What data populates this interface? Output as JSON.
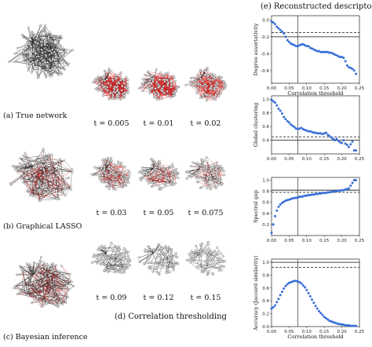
{
  "left_panels": [
    {
      "caption": "(a) True network",
      "style": "dark"
    },
    {
      "caption": "(b) Graphical LASSO",
      "style": "dark-red"
    },
    {
      "caption": "(c) Bayesian inference",
      "style": "dark-red"
    }
  ],
  "middle_panel": {
    "caption": "(d) Correlation thresholding",
    "rows": [
      {
        "labels": [
          "t = 0.005",
          "t = 0.01",
          "t = 0.02"
        ],
        "style": "red"
      },
      {
        "labels": [
          "t = 0.03",
          "t = 0.05",
          "t = 0.075"
        ],
        "style": "mixed"
      },
      {
        "labels": [
          "t = 0.09",
          "t = 0.12",
          "t = 0.15"
        ],
        "style": "sparse"
      }
    ]
  },
  "right_panel_title": "(e) Reconstructed descriptors",
  "chart_data": [
    {
      "type": "scatter",
      "ylabel": "Degree assortativity",
      "xlabel": "Correlation threshold",
      "xlim": [
        0,
        0.25
      ],
      "ylim": [
        -0.75,
        0.05
      ],
      "xticks": [
        "0.00",
        "0.05",
        "0.10",
        "0.15",
        "0.20",
        "0.25"
      ],
      "yticks": [
        "0.0",
        "-0.2",
        "-0.4",
        "-0.6"
      ],
      "vline": 0.075,
      "hline_solid": -0.2,
      "hline_dashed": -0.15,
      "x": [
        0.0,
        0.005,
        0.01,
        0.015,
        0.02,
        0.025,
        0.03,
        0.035,
        0.04,
        0.045,
        0.05,
        0.055,
        0.06,
        0.065,
        0.07,
        0.075,
        0.08,
        0.085,
        0.09,
        0.095,
        0.1,
        0.105,
        0.11,
        0.115,
        0.12,
        0.125,
        0.13,
        0.135,
        0.14,
        0.145,
        0.15,
        0.155,
        0.16,
        0.165,
        0.17,
        0.175,
        0.18,
        0.185,
        0.19,
        0.195,
        0.2,
        0.205,
        0.21,
        0.215,
        0.22,
        0.225,
        0.23,
        0.235,
        0.24
      ],
      "y": [
        -0.02,
        -0.03,
        -0.05,
        -0.08,
        -0.1,
        -0.12,
        -0.14,
        -0.16,
        -0.2,
        -0.24,
        -0.26,
        -0.28,
        -0.29,
        -0.3,
        -0.31,
        -0.31,
        -0.3,
        -0.29,
        -0.29,
        -0.3,
        -0.31,
        -0.31,
        -0.33,
        -0.34,
        -0.35,
        -0.36,
        -0.37,
        -0.37,
        -0.38,
        -0.38,
        -0.38,
        -0.38,
        -0.38,
        -0.39,
        -0.39,
        -0.4,
        -0.41,
        -0.42,
        -0.43,
        -0.44,
        -0.44,
        -0.45,
        -0.49,
        -0.54,
        -0.56,
        -0.57,
        -0.58,
        -0.6,
        -0.64
      ]
    },
    {
      "type": "scatter",
      "ylabel": "Global clustering",
      "xlabel": "",
      "xlim": [
        0,
        0.25
      ],
      "ylim": [
        0.2,
        1.05
      ],
      "xticks": [
        "0.00",
        "0.05",
        "0.10",
        "0.15",
        "0.20",
        "0.25"
      ],
      "yticks": [
        "1.0",
        "0.8",
        "0.6",
        "0.4"
      ],
      "vline": 0.075,
      "hline_solid": 0.4,
      "hline_dashed": 0.45,
      "x": [
        0.0,
        0.005,
        0.01,
        0.015,
        0.02,
        0.025,
        0.03,
        0.035,
        0.04,
        0.045,
        0.05,
        0.055,
        0.06,
        0.065,
        0.07,
        0.075,
        0.08,
        0.085,
        0.09,
        0.095,
        0.1,
        0.105,
        0.11,
        0.115,
        0.12,
        0.125,
        0.13,
        0.135,
        0.14,
        0.145,
        0.15,
        0.155,
        0.16,
        0.165,
        0.17,
        0.175,
        0.18,
        0.185,
        0.19,
        0.195,
        0.2,
        0.205,
        0.21,
        0.215,
        0.22,
        0.225,
        0.23,
        0.235,
        0.24
      ],
      "y": [
        0.99,
        0.97,
        0.95,
        0.91,
        0.86,
        0.83,
        0.79,
        0.74,
        0.71,
        0.68,
        0.66,
        0.63,
        0.61,
        0.59,
        0.57,
        0.56,
        0.57,
        0.58,
        0.56,
        0.55,
        0.54,
        0.53,
        0.53,
        0.52,
        0.51,
        0.51,
        0.5,
        0.5,
        0.5,
        0.49,
        0.5,
        0.51,
        0.48,
        0.46,
        0.44,
        0.42,
        0.4,
        0.42,
        0.39,
        0.37,
        0.36,
        0.4,
        0.35,
        0.33,
        0.3,
        0.34,
        0.38,
        0.25,
        0.25
      ]
    },
    {
      "type": "scatter",
      "ylabel": "Spectral gap",
      "xlabel": "",
      "xlim": [
        0,
        0.25
      ],
      "ylim": [
        0.0,
        1.05
      ],
      "xticks": [
        "0.00",
        "0.05",
        "0.10",
        "0.15",
        "0.20",
        "0.25"
      ],
      "yticks": [
        "1.0",
        "0.8",
        "0.6",
        "0.4",
        "0.2"
      ],
      "vline": 0.075,
      "hline_solid": 0.82,
      "hline_dashed": 0.78,
      "x": [
        0.0,
        0.005,
        0.01,
        0.015,
        0.02,
        0.025,
        0.03,
        0.035,
        0.04,
        0.045,
        0.05,
        0.055,
        0.06,
        0.065,
        0.07,
        0.075,
        0.08,
        0.085,
        0.09,
        0.095,
        0.1,
        0.105,
        0.11,
        0.115,
        0.12,
        0.125,
        0.13,
        0.135,
        0.14,
        0.145,
        0.15,
        0.155,
        0.16,
        0.165,
        0.17,
        0.175,
        0.18,
        0.185,
        0.19,
        0.195,
        0.2,
        0.205,
        0.21,
        0.215,
        0.22,
        0.225,
        0.23,
        0.235,
        0.24
      ],
      "y": [
        0.05,
        0.2,
        0.35,
        0.45,
        0.52,
        0.56,
        0.59,
        0.61,
        0.63,
        0.64,
        0.65,
        0.66,
        0.67,
        0.68,
        0.68,
        0.69,
        0.7,
        0.7,
        0.71,
        0.72,
        0.72,
        0.73,
        0.73,
        0.74,
        0.74,
        0.75,
        0.75,
        0.76,
        0.76,
        0.77,
        0.77,
        0.77,
        0.78,
        0.78,
        0.79,
        0.79,
        0.8,
        0.8,
        0.81,
        0.81,
        0.82,
        0.82,
        0.83,
        0.84,
        0.85,
        0.9,
        0.95,
        1.0,
        1.0
      ]
    },
    {
      "type": "scatter",
      "ylabel": "Accuracy (Jaccard similarity)",
      "xlabel": "Correlation threshold",
      "xlim": [
        0,
        0.25
      ],
      "ylim": [
        0.0,
        1.05
      ],
      "xticks": [
        "0.00",
        "0.05",
        "0.10",
        "0.15",
        "0.20",
        "0.25"
      ],
      "yticks": [
        "1.0",
        "0.8",
        "0.6",
        "0.4",
        "0.2",
        "0.0"
      ],
      "vline": 0.075,
      "hline_solid": 1.0,
      "hline_dashed": 0.92,
      "x": [
        0.0,
        0.005,
        0.01,
        0.015,
        0.02,
        0.025,
        0.03,
        0.035,
        0.04,
        0.045,
        0.05,
        0.055,
        0.06,
        0.065,
        0.07,
        0.075,
        0.08,
        0.085,
        0.09,
        0.095,
        0.1,
        0.105,
        0.11,
        0.115,
        0.12,
        0.125,
        0.13,
        0.135,
        0.14,
        0.145,
        0.15,
        0.155,
        0.16,
        0.165,
        0.17,
        0.175,
        0.18,
        0.185,
        0.19,
        0.195,
        0.2,
        0.205,
        0.21,
        0.215,
        0.22,
        0.225,
        0.23,
        0.235,
        0.24
      ],
      "y": [
        0.28,
        0.3,
        0.33,
        0.38,
        0.43,
        0.49,
        0.54,
        0.59,
        0.63,
        0.66,
        0.68,
        0.69,
        0.7,
        0.71,
        0.71,
        0.7,
        0.69,
        0.67,
        0.64,
        0.61,
        0.57,
        0.52,
        0.47,
        0.42,
        0.37,
        0.32,
        0.28,
        0.24,
        0.21,
        0.18,
        0.15,
        0.13,
        0.11,
        0.09,
        0.08,
        0.07,
        0.06,
        0.05,
        0.04,
        0.04,
        0.03,
        0.03,
        0.02,
        0.02,
        0.02,
        0.01,
        0.01,
        0.01,
        0.01
      ]
    }
  ],
  "colors": {
    "series": "#3a6fd8",
    "node": "#e8e8e8",
    "edge_dark": "#1a1a1a",
    "edge_red": "#c81e1e"
  }
}
